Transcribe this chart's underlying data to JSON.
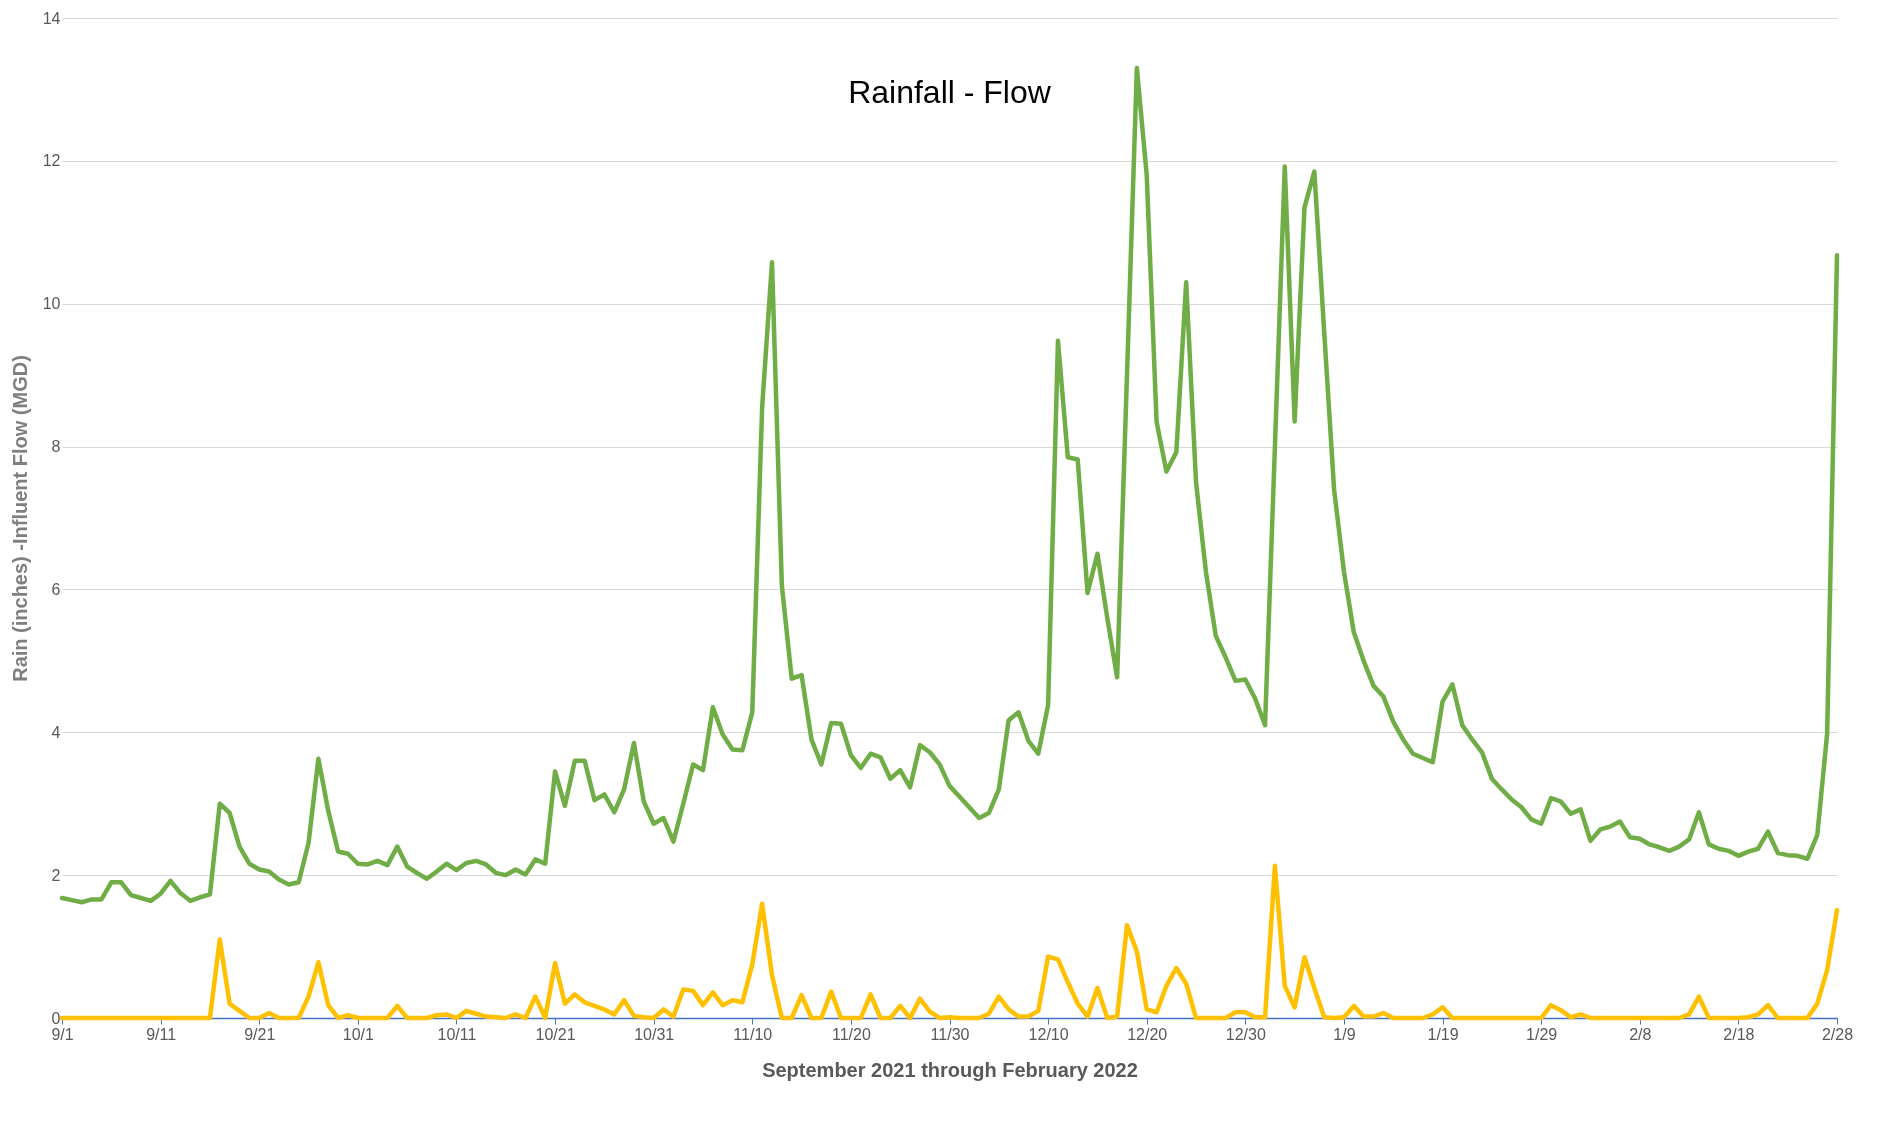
{
  "chart_data": {
    "type": "line",
    "title": "Rainfall - Flow",
    "xlabel": "September 2021 through February 2022",
    "ylabel": "Rain (inches) -Influent Flow (MGD)",
    "categories": [
      "9/1",
      null,
      null,
      null,
      null,
      null,
      null,
      null,
      null,
      null,
      "9/11",
      null,
      null,
      null,
      null,
      null,
      null,
      null,
      null,
      null,
      "9/21",
      null,
      null,
      null,
      null,
      null,
      null,
      null,
      null,
      null,
      "10/1",
      null,
      null,
      null,
      null,
      null,
      null,
      null,
      null,
      null,
      "10/11",
      null,
      null,
      null,
      null,
      null,
      null,
      null,
      null,
      null,
      "10/21",
      null,
      null,
      null,
      null,
      null,
      null,
      null,
      null,
      null,
      "10/31",
      null,
      null,
      null,
      null,
      null,
      null,
      null,
      null,
      null,
      "11/10",
      null,
      null,
      null,
      null,
      null,
      null,
      null,
      null,
      null,
      "11/20",
      null,
      null,
      null,
      null,
      null,
      null,
      null,
      null,
      null,
      "11/30",
      null,
      null,
      null,
      null,
      null,
      null,
      null,
      null,
      null,
      "12/10",
      null,
      null,
      null,
      null,
      null,
      null,
      null,
      null,
      null,
      "12/20",
      null,
      null,
      null,
      null,
      null,
      null,
      null,
      null,
      null,
      "12/30",
      null,
      null,
      null,
      null,
      null,
      null,
      null,
      null,
      null,
      "1/9",
      null,
      null,
      null,
      null,
      null,
      null,
      null,
      null,
      null,
      "1/19",
      null,
      null,
      null,
      null,
      null,
      null,
      null,
      null,
      null,
      "1/29",
      null,
      null,
      null,
      null,
      null,
      null,
      null,
      null,
      null,
      "2/8",
      null,
      null,
      null,
      null,
      null,
      null,
      null,
      null,
      null,
      "2/18",
      null,
      null,
      null,
      null,
      null,
      null,
      null,
      null,
      null,
      "2/28"
    ],
    "series": [
      {
        "color": "#70ad47",
        "values": [
          1.68,
          1.65,
          1.62,
          1.66,
          1.66,
          1.9,
          1.9,
          1.72,
          1.68,
          1.64,
          1.74,
          1.92,
          1.75,
          1.64,
          1.69,
          1.73,
          3.0,
          2.87,
          2.4,
          2.16,
          2.08,
          2.05,
          1.94,
          1.87,
          1.9,
          2.45,
          3.63,
          2.9,
          2.33,
          2.3,
          2.16,
          2.15,
          2.2,
          2.14,
          2.4,
          2.12,
          2.03,
          1.95,
          2.05,
          2.16,
          2.07,
          2.17,
          2.2,
          2.15,
          2.03,
          2.0,
          2.08,
          2.01,
          2.22,
          2.16,
          3.45,
          2.97,
          3.6,
          3.6,
          3.05,
          3.13,
          2.88,
          3.2,
          3.85,
          3.03,
          2.72,
          2.8,
          2.47,
          3.0,
          3.55,
          3.47,
          4.35,
          3.97,
          3.76,
          3.75,
          4.28,
          8.55,
          10.58,
          6.05,
          4.75,
          4.8,
          3.9,
          3.55,
          4.13,
          4.12,
          3.68,
          3.5,
          3.7,
          3.65,
          3.35,
          3.47,
          3.23,
          3.82,
          3.72,
          3.55,
          3.25,
          3.1,
          2.95,
          2.8,
          2.87,
          3.2,
          4.17,
          4.28,
          3.88,
          3.7,
          4.38,
          9.48,
          7.85,
          7.82,
          5.95,
          6.5,
          5.6,
          4.77,
          9.0,
          13.3,
          11.8,
          8.35,
          7.65,
          7.92,
          10.3,
          7.5,
          6.25,
          5.35,
          5.05,
          4.72,
          4.74,
          4.47,
          4.1,
          8.0,
          11.92,
          8.35,
          11.35,
          11.85,
          9.6,
          7.4,
          6.25,
          5.4,
          5.0,
          4.65,
          4.5,
          4.15,
          3.9,
          3.7,
          3.64,
          3.58,
          4.43,
          4.67,
          4.1,
          3.9,
          3.72,
          3.35,
          3.2,
          3.06,
          2.95,
          2.78,
          2.72,
          3.08,
          3.03,
          2.86,
          2.92,
          2.48,
          2.64,
          2.68,
          2.75,
          2.53,
          2.51,
          2.43,
          2.39,
          2.34,
          2.4,
          2.5,
          2.88,
          2.43,
          2.37,
          2.34,
          2.27,
          2.33,
          2.37,
          2.61,
          2.31,
          2.28,
          2.27,
          2.23,
          2.56,
          3.98,
          10.68
        ]
      },
      {
        "color": "#ffc000",
        "values": [
          0,
          0,
          0,
          0,
          0,
          0,
          0,
          0,
          0,
          0,
          0,
          0,
          0,
          0,
          0,
          0,
          1.1,
          0.2,
          0.1,
          0,
          0,
          0.07,
          0,
          0,
          0,
          0.3,
          0.78,
          0.18,
          0,
          0.04,
          0,
          0,
          0,
          0,
          0.17,
          0,
          0,
          0,
          0.04,
          0.05,
          0,
          0.1,
          0.06,
          0.02,
          0.01,
          0,
          0.05,
          0,
          0.3,
          0,
          0.77,
          0.2,
          0.33,
          0.22,
          0.17,
          0.12,
          0.05,
          0.25,
          0.03,
          0.01,
          0,
          0.12,
          0.02,
          0.4,
          0.38,
          0.18,
          0.36,
          0.18,
          0.25,
          0.22,
          0.75,
          1.6,
          0.6,
          0,
          0,
          0.32,
          0,
          0,
          0.37,
          0,
          0,
          0,
          0.33,
          0,
          0,
          0.17,
          0,
          0.27,
          0.09,
          0,
          0.01,
          0,
          0,
          0,
          0.06,
          0.3,
          0.12,
          0.02,
          0.02,
          0.1,
          0.86,
          0.82,
          0.5,
          0.2,
          0.02,
          0.42,
          0,
          0.02,
          1.3,
          0.93,
          0.12,
          0.08,
          0.45,
          0.7,
          0.48,
          0,
          0,
          0,
          0,
          0.08,
          0.08,
          0.01,
          0.01,
          2.13,
          0.45,
          0.15,
          0.85,
          0.42,
          0.01,
          0,
          0.01,
          0.17,
          0.02,
          0.02,
          0.07,
          0,
          0,
          0,
          0,
          0.05,
          0.15,
          0,
          0,
          0,
          0,
          0,
          0,
          0,
          0,
          0,
          0,
          0.18,
          0.11,
          0.01,
          0.05,
          0,
          0,
          0,
          0,
          0,
          0,
          0,
          0,
          0,
          0,
          0.05,
          0.3,
          0,
          0,
          0,
          0,
          0.01,
          0.05,
          0.18,
          0,
          0,
          0,
          0,
          0.2,
          0.67,
          1.51
        ]
      }
    ],
    "ylim": [
      0,
      14
    ],
    "yticks": [
      0,
      2,
      4,
      6,
      8,
      10,
      12,
      14
    ],
    "grid": "y"
  }
}
